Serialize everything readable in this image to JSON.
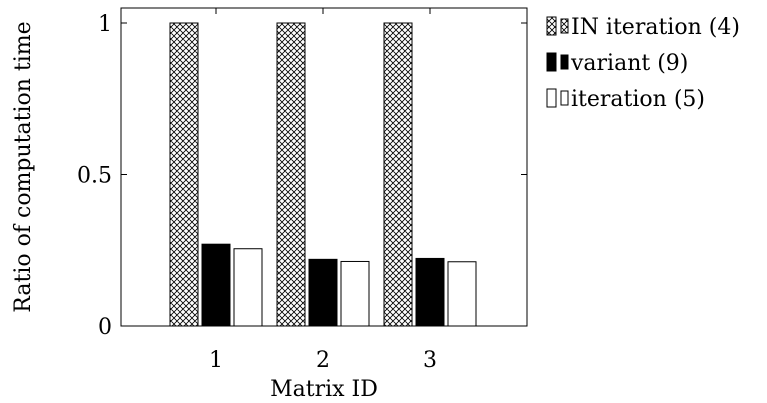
{
  "chart_data": {
    "type": "bar",
    "categories": [
      "1",
      "2",
      "3"
    ],
    "xlabel": "Matrix ID",
    "ylabel": "Ratio of computation time",
    "ylim": [
      0,
      1
    ],
    "yticks": [
      "0",
      "0.5",
      "1"
    ],
    "grid": false,
    "legend_position": "right",
    "series": [
      {
        "name": "IN iteration (4)",
        "values": [
          1.0,
          1.0,
          1.0
        ],
        "fill": "crosshatch",
        "color": "#000000"
      },
      {
        "name": "variant (9)",
        "values": [
          0.27,
          0.22,
          0.223
        ],
        "fill": "solid",
        "color": "#000000"
      },
      {
        "name": "iteration (5)",
        "values": [
          0.255,
          0.213,
          0.212
        ],
        "fill": "none",
        "color": "#ffffff"
      }
    ]
  }
}
